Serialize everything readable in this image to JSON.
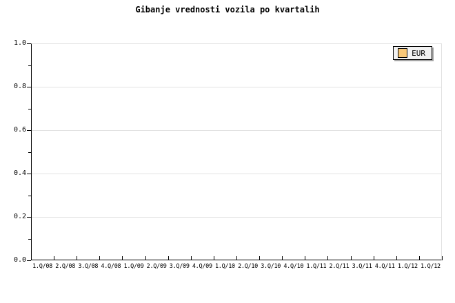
{
  "chart": {
    "title": "Gibanje vrednosti vozila po kvartalih"
  },
  "chart_data": {
    "type": "line",
    "title": "Gibanje vrednosti vozila po kvartalih",
    "categories": [
      "1.Q/08",
      "2.Q/08",
      "3.Q/08",
      "4.Q/08",
      "1.Q/09",
      "2.Q/09",
      "3.Q/09",
      "4.Q/09",
      "1.Q/10",
      "2.Q/10",
      "3.Q/10",
      "4.Q/10",
      "1.Q/11",
      "2.Q/11",
      "3.Q/11",
      "4.Q/11",
      "1.Q/12",
      "1.Q/12"
    ],
    "series": [
      {
        "name": "EUR",
        "color": "#F9C878",
        "values": []
      }
    ],
    "xlabel": "",
    "ylabel": "",
    "ylim": [
      0.0,
      1.0
    ],
    "y_tick_labels": [
      "1.0",
      "0.8",
      "0.6",
      "0.4",
      "0.2",
      "0.0"
    ],
    "y_tick_step": 0.2,
    "y_minor_tick_step": 0.1,
    "grid": true,
    "legend_position": "top-right"
  },
  "colors": {
    "background": "#FFFFFF",
    "text": "#000000",
    "axis": "#000000",
    "gridline": "#E2E2E2",
    "plot_border_light": "#E2E2E2",
    "legend_background": "#F2F2F2",
    "legend_border": "#000000",
    "legend_shadow": "#A6A6A6",
    "series_eur": "#F9C878"
  }
}
